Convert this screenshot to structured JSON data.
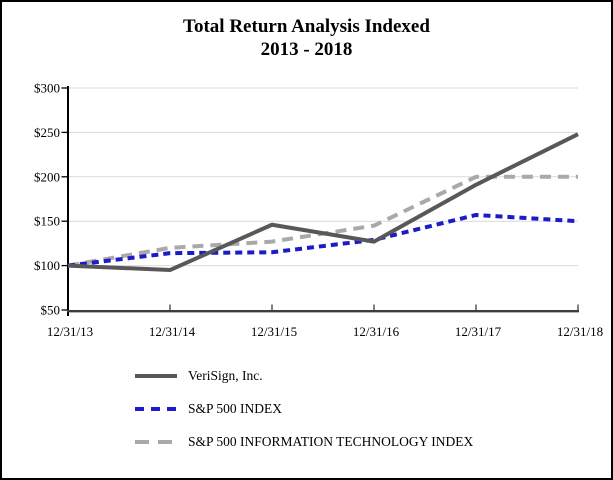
{
  "title": {
    "line1": "Total Return Analysis Indexed",
    "line2": "2013 - 2018"
  },
  "chart_data": {
    "type": "line",
    "categories": [
      "12/31/13",
      "12/31/14",
      "12/31/15",
      "12/31/16",
      "12/31/17",
      "12/31/18"
    ],
    "series": [
      {
        "name": "VeriSign, Inc.",
        "style": "solid",
        "color": "#58585a",
        "values": [
          100,
          95,
          146,
          127,
          191,
          248
        ]
      },
      {
        "name": "S&P 500 INDEX",
        "style": "dotted",
        "color": "#1b1bc8",
        "values": [
          100,
          114,
          115,
          129,
          157,
          150
        ]
      },
      {
        "name": "S&P 500 INFORMATION TECHNOLOGY INDEX",
        "style": "dashed",
        "color": "#a9a9a9",
        "values": [
          100,
          120,
          127,
          145,
          200,
          200
        ]
      }
    ],
    "ylim": [
      50,
      300
    ],
    "y_ticks": [
      50,
      100,
      150,
      200,
      250,
      300
    ],
    "y_tick_labels": [
      "$50",
      "$100",
      "$150",
      "$200",
      "$250",
      "$300"
    ],
    "xlabel": "",
    "ylabel": "",
    "grid": "horizontal",
    "legend_position": "bottom-left",
    "gridline_color": "#d9d9d9",
    "axis_color": "#000000",
    "x_axis_color": "#3d3d3d"
  }
}
